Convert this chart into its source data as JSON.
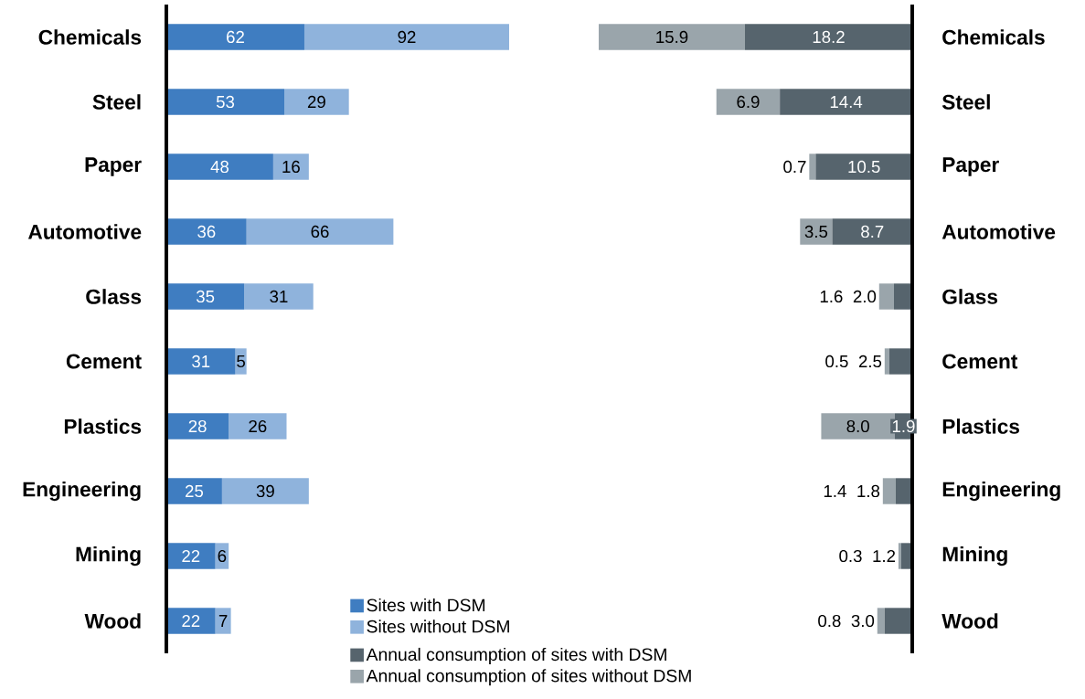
{
  "chart_data": [
    {
      "type": "bar",
      "orientation": "horizontal",
      "stacked": true,
      "data_labels": true,
      "legend": "bottom",
      "categories": [
        "Chemicals",
        "Steel",
        "Paper",
        "Automotive",
        "Glass",
        "Cement",
        "Plastics",
        "Engineering",
        "Mining",
        "Wood"
      ],
      "series": [
        {
          "name": "Sites with DSM",
          "color": "#3f7dc1",
          "values": [
            62,
            53,
            48,
            36,
            35,
            31,
            28,
            25,
            22,
            22
          ]
        },
        {
          "name": "Sites without DSM",
          "color": "#8fb3dc",
          "values": [
            92,
            29,
            16,
            66,
            31,
            5,
            26,
            39,
            6,
            7
          ]
        }
      ]
    },
    {
      "type": "bar",
      "orientation": "horizontal",
      "stacked": true,
      "legend": "bottom",
      "categories": [
        "Chemicals",
        "Steel",
        "Paper",
        "Automotive",
        "Glass",
        "Cement",
        "Plastics",
        "Engineering",
        "Mining",
        "Wood"
      ],
      "series": [
        {
          "name": "Annual consumption of sites with DSM",
          "color": "#56646d",
          "values": [
            18.2,
            14.4,
            10.5,
            8.7,
            2.0,
            2.5,
            1.9,
            1.8,
            1.2,
            3.0
          ],
          "value_labels": [
            "18.2",
            "14.4",
            "10.5",
            "8.7",
            "2.0",
            "2.5",
            "1.9",
            "1.8",
            "1.2",
            "3.0"
          ]
        },
        {
          "name": "Annual consumption of sites without DSM",
          "color": "#9aa5ab",
          "values": [
            15.9,
            6.9,
            0.7,
            3.5,
            1.6,
            0.5,
            8.0,
            1.4,
            0.3,
            0.8
          ],
          "value_labels": [
            "15.9",
            "6.9",
            "0.7",
            "3.5",
            "1.6",
            "0.5",
            "8.0",
            "1.4",
            "0.3",
            "0.8"
          ]
        }
      ]
    }
  ]
}
